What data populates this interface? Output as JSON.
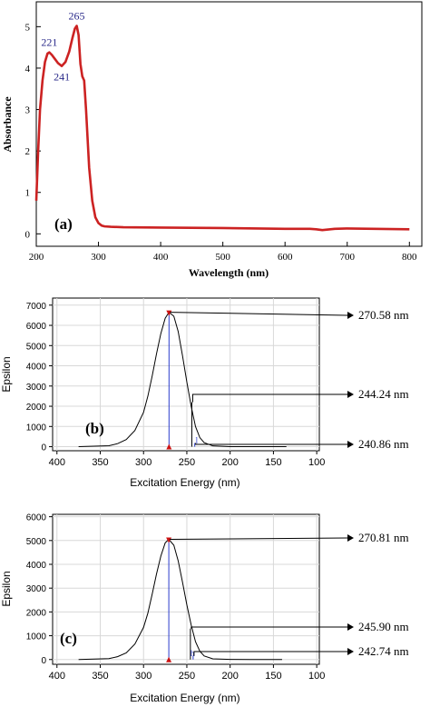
{
  "chart_data": [
    {
      "panel": "(a)",
      "type": "line",
      "xlabel": "Wavelength (nm)",
      "ylabel": "Absorbance",
      "xlim": [
        200,
        820
      ],
      "ylim": [
        -0.3,
        5.6
      ],
      "x_ticks": [
        200,
        300,
        400,
        500,
        600,
        700,
        800
      ],
      "y_ticks": [
        0,
        1,
        2,
        3,
        4,
        5
      ],
      "color": "#cc2222",
      "series": [
        {
          "x": [
            200,
            203,
            206,
            210,
            214,
            218,
            221,
            225,
            230,
            235,
            241,
            247,
            253,
            258,
            262,
            265,
            268,
            271,
            274,
            277,
            280,
            285,
            290,
            295,
            300,
            305,
            310,
            320,
            340,
            400,
            500,
            600,
            640,
            650,
            660,
            680,
            700,
            800
          ],
          "y": [
            0.8,
            2.0,
            3.0,
            3.7,
            4.15,
            4.35,
            4.38,
            4.32,
            4.22,
            4.12,
            4.05,
            4.15,
            4.4,
            4.72,
            4.95,
            5.02,
            4.8,
            4.1,
            3.8,
            3.7,
            3.0,
            1.6,
            0.8,
            0.4,
            0.26,
            0.2,
            0.18,
            0.17,
            0.16,
            0.15,
            0.14,
            0.12,
            0.12,
            0.11,
            0.09,
            0.12,
            0.13,
            0.11
          ]
        }
      ],
      "annotations": [
        {
          "label": "221",
          "x": 221,
          "y": 4.38,
          "pos": "above"
        },
        {
          "label": "241",
          "x": 241,
          "y": 4.05,
          "pos": "below"
        },
        {
          "label": "265",
          "x": 265,
          "y": 5.02,
          "pos": "above"
        }
      ]
    },
    {
      "panel": "(b)",
      "type": "line",
      "xlabel": "Excitation Energy (nm)",
      "ylabel": "Epsilon",
      "xlim": [
        405,
        97
      ],
      "ylim": [
        -200,
        7350
      ],
      "x_ticks": [
        400,
        350,
        300,
        250,
        200,
        150,
        100
      ],
      "y_ticks": [
        0,
        1000,
        2000,
        3000,
        4000,
        5000,
        6000,
        7000
      ],
      "color": "#000000",
      "series": [
        {
          "x": [
            375,
            340,
            330,
            320,
            310,
            300,
            295,
            290,
            285,
            280,
            275,
            270.58,
            265,
            260,
            255,
            250,
            245,
            240,
            235,
            230,
            220,
            200,
            175,
            150,
            135
          ],
          "y": [
            0,
            50,
            150,
            350,
            800,
            1700,
            2500,
            3500,
            4600,
            5600,
            6350,
            6650,
            6450,
            5700,
            4500,
            3200,
            2000,
            1000,
            450,
            200,
            40,
            5,
            0,
            0,
            0
          ]
        }
      ],
      "sticks": [
        {
          "x": 270.58,
          "y": 6650,
          "color": "#2b3ccc"
        },
        {
          "x": 244.24,
          "y": 2200,
          "color": "#000000"
        },
        {
          "x": 240.86,
          "y": 180,
          "color": "#2b3ccc"
        }
      ],
      "marker_labels": [
        "l"
      ],
      "callouts": [
        "270.58 nm",
        "244.24 nm",
        "240.86 nm"
      ]
    },
    {
      "panel": "(c)",
      "type": "line",
      "xlabel": "Excitation Energy (nm)",
      "ylabel": "Epsilon",
      "xlim": [
        405,
        97
      ],
      "ylim": [
        -200,
        6100
      ],
      "x_ticks": [
        400,
        350,
        300,
        250,
        200,
        150,
        100
      ],
      "y_ticks": [
        0,
        1000,
        2000,
        3000,
        4000,
        5000,
        6000
      ],
      "color": "#000000",
      "series": [
        {
          "x": [
            375,
            340,
            330,
            320,
            310,
            300,
            295,
            290,
            285,
            280,
            275,
            270.81,
            265,
            260,
            255,
            250,
            245,
            240,
            235,
            230,
            220,
            200,
            175,
            150,
            140
          ],
          "y": [
            0,
            40,
            120,
            280,
            650,
            1350,
            1950,
            2750,
            3600,
            4350,
            4900,
            5050,
            4800,
            4150,
            3250,
            2300,
            1450,
            750,
            350,
            150,
            30,
            5,
            0,
            0,
            0
          ]
        }
      ],
      "sticks": [
        {
          "x": 270.81,
          "y": 5050,
          "color": "#2b3ccc"
        },
        {
          "x": 245.9,
          "y": 1300,
          "color": "#000000"
        },
        {
          "x": 242.74,
          "y": 150,
          "color": "#2b3ccc"
        }
      ],
      "marker_labels": [
        "h"
      ],
      "callouts": [
        "270.81 nm",
        "245.90 nm",
        "242.74 nm"
      ]
    }
  ]
}
